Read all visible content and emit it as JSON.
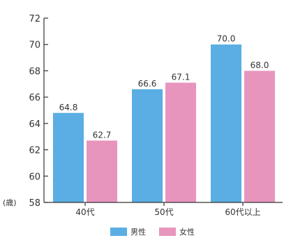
{
  "chart_data": {
    "type": "bar",
    "categories": [
      "40代",
      "50代",
      "60代以上"
    ],
    "series": [
      {
        "name": "男性",
        "values": [
          64.8,
          66.6,
          70.0
        ],
        "labels": [
          "64.8",
          "66.6",
          "70.0"
        ],
        "color": "#5aaee3"
      },
      {
        "name": "女性",
        "values": [
          62.7,
          67.1,
          68.0
        ],
        "labels": [
          "62.7",
          "67.1",
          "68.0"
        ],
        "color": "#e895be"
      }
    ],
    "y_unit": "(歳)",
    "ylim": [
      58,
      72
    ],
    "yticks": [
      58,
      60,
      62,
      64,
      66,
      68,
      70,
      72
    ],
    "grid": false,
    "legend": "bottom-center",
    "axis_color": "#333333"
  }
}
